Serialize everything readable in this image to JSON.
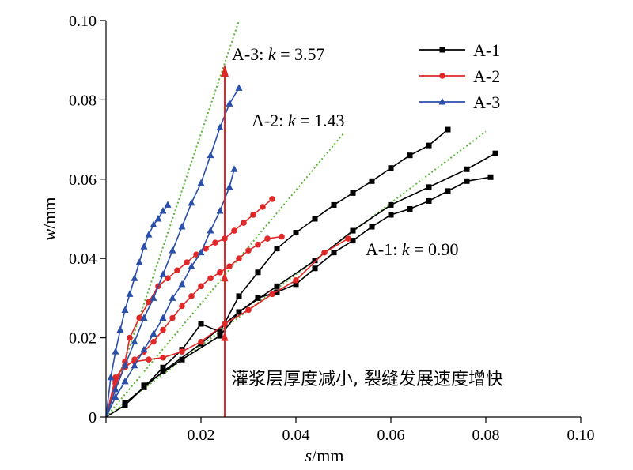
{
  "chart_data": {
    "type": "line",
    "xlabel": "s/mm",
    "xlabel_var": "s",
    "xlabel_unit": "/mm",
    "ylabel": "w/mm",
    "ylabel_var": "w",
    "ylabel_unit": "/mm",
    "xlim": [
      0,
      0.1
    ],
    "ylim": [
      0,
      0.1
    ],
    "xticks": [
      0,
      0.02,
      0.04,
      0.06,
      0.08,
      0.1
    ],
    "yticks": [
      0,
      0.02,
      0.04,
      0.06,
      0.08,
      0.1
    ],
    "xtick_labels": [
      "0",
      "0.02",
      "0.04",
      "0.06",
      "0.08",
      "0.10"
    ],
    "ytick_labels": [
      "0",
      "0.02",
      "0.04",
      "0.06",
      "0.08",
      "0.10"
    ],
    "legend_position": "top-right",
    "series": [
      {
        "name": "A-1",
        "color": "#000000",
        "marker": "square",
        "segments": [
          {
            "x": [
              0.0,
              0.004,
              0.008,
              0.012,
              0.016,
              0.02,
              0.024,
              0.028,
              0.032,
              0.036,
              0.04,
              0.044,
              0.048,
              0.052,
              0.056,
              0.06,
              0.064,
              0.068,
              0.072
            ],
            "y": [
              0.0,
              0.003,
              0.0075,
              0.0125,
              0.017,
              0.0235,
              0.0215,
              0.0305,
              0.0365,
              0.0425,
              0.0465,
              0.05,
              0.0535,
              0.0565,
              0.0595,
              0.0628,
              0.066,
              0.0685,
              0.0725
            ]
          },
          {
            "x": [
              0.004,
              0.012,
              0.02,
              0.028,
              0.036,
              0.044,
              0.052,
              0.06,
              0.068,
              0.076,
              0.082
            ],
            "y": [
              0.0035,
              0.0115,
              0.0185,
              0.0265,
              0.033,
              0.0395,
              0.047,
              0.0535,
              0.058,
              0.0625,
              0.0665
            ]
          },
          {
            "x": [
              0.008,
              0.016,
              0.024,
              0.028,
              0.032,
              0.036,
              0.04,
              0.044,
              0.048,
              0.052,
              0.056,
              0.06,
              0.064,
              0.068,
              0.072,
              0.076,
              0.081
            ],
            "y": [
              0.008,
              0.0145,
              0.0205,
              0.0265,
              0.03,
              0.0315,
              0.0335,
              0.0375,
              0.0415,
              0.0445,
              0.048,
              0.051,
              0.0525,
              0.0545,
              0.057,
              0.0595,
              0.0605
            ]
          }
        ]
      },
      {
        "name": "A-2",
        "color": "#e02828",
        "marker": "circle",
        "segments": [
          {
            "x": [
              0.0,
              0.002,
              0.004,
              0.005,
              0.007,
              0.009,
              0.011,
              0.013,
              0.015,
              0.017,
              0.019,
              0.021,
              0.023,
              0.025,
              0.027,
              0.029,
              0.031,
              0.033,
              0.035
            ],
            "y": [
              0.0,
              0.009,
              0.014,
              0.02,
              0.025,
              0.029,
              0.033,
              0.035,
              0.037,
              0.039,
              0.041,
              0.0425,
              0.044,
              0.045,
              0.047,
              0.049,
              0.051,
              0.053,
              0.055
            ]
          },
          {
            "x": [
              0.0,
              0.002,
              0.004,
              0.006,
              0.008,
              0.01,
              0.012,
              0.014,
              0.016,
              0.018,
              0.02,
              0.022,
              0.024,
              0.026,
              0.028,
              0.03,
              0.032,
              0.034,
              0.037
            ],
            "y": [
              0.0,
              0.0085,
              0.0125,
              0.0145,
              0.0165,
              0.019,
              0.022,
              0.025,
              0.028,
              0.0305,
              0.033,
              0.035,
              0.0365,
              0.038,
              0.04,
              0.042,
              0.0435,
              0.045,
              0.0455
            ]
          },
          {
            "x": [
              0.0,
              0.002,
              0.004,
              0.006,
              0.009,
              0.012,
              0.016,
              0.02,
              0.025,
              0.03,
              0.035,
              0.04,
              0.046,
              0.051
            ],
            "y": [
              0.0,
              0.01,
              0.013,
              0.014,
              0.0145,
              0.015,
              0.0165,
              0.019,
              0.0235,
              0.027,
              0.031,
              0.0345,
              0.0415,
              0.045
            ]
          }
        ]
      },
      {
        "name": "A-3",
        "color": "#2a4fa8",
        "marker": "triangle",
        "segments": [
          {
            "x": [
              0.0,
              0.001,
              0.002,
              0.003,
              0.004,
              0.005,
              0.006,
              0.007,
              0.008,
              0.009,
              0.01,
              0.011,
              0.012,
              0.013
            ],
            "y": [
              0.0,
              0.01,
              0.0165,
              0.022,
              0.027,
              0.031,
              0.035,
              0.039,
              0.043,
              0.046,
              0.0485,
              0.05,
              0.052,
              0.0535
            ]
          },
          {
            "x": [
              0.0,
              0.002,
              0.004,
              0.006,
              0.008,
              0.01,
              0.012,
              0.014,
              0.016,
              0.018,
              0.02,
              0.022,
              0.024,
              0.026,
              0.028
            ],
            "y": [
              0.0,
              0.007,
              0.013,
              0.019,
              0.025,
              0.03,
              0.036,
              0.042,
              0.048,
              0.054,
              0.059,
              0.066,
              0.073,
              0.079,
              0.083
            ]
          },
          {
            "x": [
              0.0,
              0.002,
              0.004,
              0.006,
              0.008,
              0.01,
              0.012,
              0.014,
              0.016,
              0.018,
              0.02,
              0.022,
              0.024,
              0.026,
              0.027
            ],
            "y": [
              0.0,
              0.005,
              0.009,
              0.013,
              0.017,
              0.021,
              0.025,
              0.03,
              0.0335,
              0.038,
              0.0415,
              0.047,
              0.052,
              0.058,
              0.0625
            ]
          }
        ]
      }
    ],
    "fit_lines": [
      {
        "label_prefix": "A-1: ",
        "k_symbol": "k",
        "label_value": " = 0.90",
        "k": 0.9,
        "x": [
          0.0,
          0.08
        ],
        "y": [
          0.0,
          0.072
        ]
      },
      {
        "label_prefix": "A-2: ",
        "k_symbol": "k",
        "label_value": " = 1.43",
        "k": 1.43,
        "x": [
          0.0,
          0.05
        ],
        "y": [
          0.0,
          0.0715
        ]
      },
      {
        "label_prefix": "A-3: ",
        "k_symbol": "k",
        "label_value": " = 3.57",
        "k": 3.57,
        "x": [
          0.0,
          0.028
        ],
        "y": [
          0.0,
          0.1
        ]
      }
    ],
    "fit_line_color": "#5cb83a",
    "arrow": {
      "x": 0.025,
      "y_from": 0.0,
      "y_to": 0.089,
      "color": "#e02828"
    },
    "arrow_markers_y": [
      0.02,
      0.035
    ],
    "annotation": "灌浆层厚度减小, 裂缝发展速度增快"
  }
}
